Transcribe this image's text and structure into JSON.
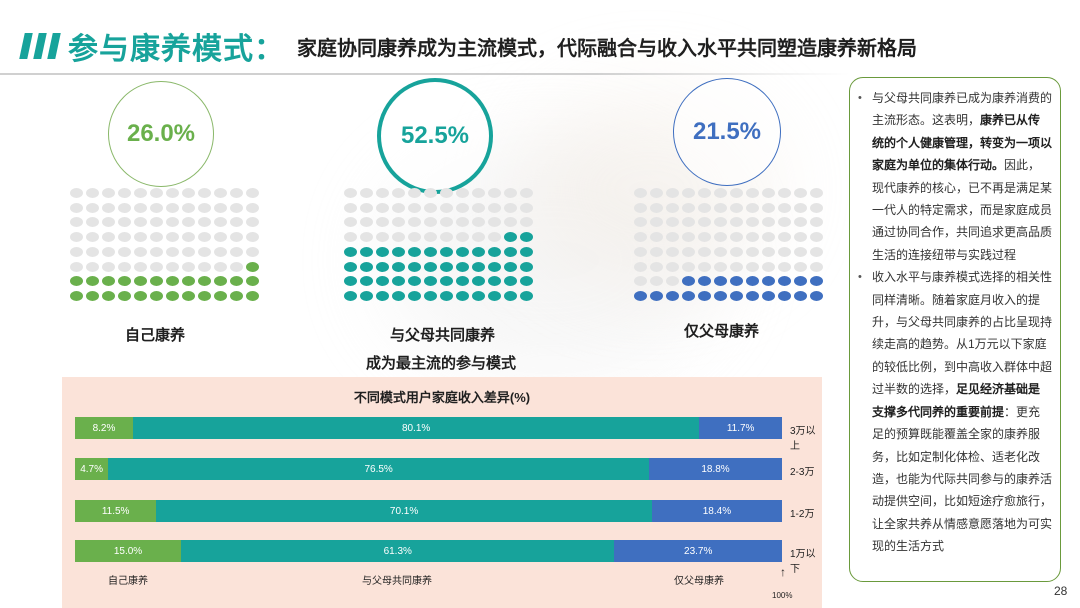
{
  "header": {
    "title": "参与康养模式：",
    "subtitle": "家庭协同康养成为主流模式，代际融合与收入水平共同塑造康养新格局"
  },
  "modes": [
    {
      "pct": "26.0%",
      "label": "自己康养",
      "share": 26.0,
      "color": "#6ab04c"
    },
    {
      "pct": "52.5%",
      "label": "与父母共同康养",
      "label2": "成为最主流的参与模式",
      "share": 52.5,
      "color": "#17a39b"
    },
    {
      "pct": "21.5%",
      "label": "仅父母康养",
      "share": 21.5,
      "color": "#3f6fc0"
    }
  ],
  "chart_data": {
    "type": "bar",
    "orientation": "horizontal-stacked-100",
    "title": "不同模式用户家庭收入差异(%)",
    "categories": [
      "3万以上",
      "2-3万",
      "1-2万",
      "1万以下"
    ],
    "series": [
      {
        "name": "自己康养",
        "values": [
          8.2,
          4.7,
          11.5,
          15.0
        ],
        "labels": [
          "8.2%",
          "4.7%",
          "11.5%",
          "15.0%"
        ],
        "color": "#6ab04c"
      },
      {
        "name": "与父母共同康养",
        "values": [
          80.1,
          76.5,
          70.1,
          61.3
        ],
        "labels": [
          "80.1%",
          "76.5%",
          "70.1%",
          "61.3%"
        ],
        "color": "#17a39b"
      },
      {
        "name": "仅父母康养",
        "values": [
          11.7,
          18.8,
          18.4,
          23.7
        ],
        "labels": [
          "11.7%",
          "18.8%",
          "18.4%",
          "23.7%"
        ],
        "color": "#3f6fc0"
      }
    ],
    "total_label": "100%"
  },
  "sidebar": {
    "para1": [
      {
        "t": "与父母共同康养已成为康养消费的主流形态。这表明，",
        "b": false
      },
      {
        "t": "康养已从传统的个人健康管理，转变为一项以家庭为单位的集体行动。",
        "b": true
      },
      {
        "t": "因此，现代康养的核心，已不再是满足某一代人的特定需求，而是家庭成员通过协同合作，共同追求更高品质生活的连接纽带与实践过程",
        "b": false
      }
    ],
    "para2": [
      {
        "t": "收入水平与康养模式选择的相关性同样清晰。随着家庭月收入的提升，与父母共同康养的占比呈现持续走高的趋势。从1万元以下家庭的较低比例，到中高收入群体中超过半数的选择，",
        "b": false
      },
      {
        "t": "足见经济基础是支撑多代同养的重要前提",
        "b": true
      },
      {
        "t": "：更充足的预算既能覆盖全家的康养服务，比如定制化体检、适老化改造，也能为代际共同参与的康养活动提供空间，比如短途疗愈旅行，让全家共养从情感意愿落地为可实现的生活方式",
        "b": false
      }
    ]
  },
  "page_number": "28"
}
